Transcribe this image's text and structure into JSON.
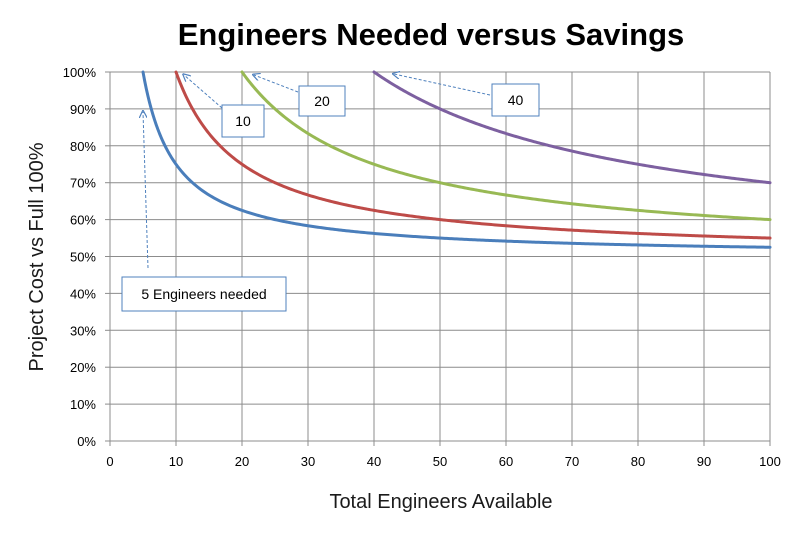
{
  "chart_data": {
    "type": "line",
    "title": "Engineers Needed versus Savings",
    "xlabel": "Total Engineers Available",
    "ylabel": "Project Cost vs Full 100%",
    "xlim": [
      0,
      100
    ],
    "ylim": [
      0,
      1
    ],
    "xticks": [
      "0",
      "10",
      "20",
      "30",
      "40",
      "50",
      "60",
      "70",
      "80",
      "90",
      "100"
    ],
    "yticks": [
      "0%",
      "10%",
      "20%",
      "30%",
      "40%",
      "50%",
      "60%",
      "70%",
      "80%",
      "90%",
      "100%"
    ],
    "grid": true,
    "series": [
      {
        "name": "5 Engineers needed",
        "engineers_needed": 5,
        "color": "#4a7ebb",
        "x": [
          5,
          10,
          20,
          30,
          40,
          50,
          60,
          70,
          80,
          90,
          100
        ],
        "y": [
          1.0,
          0.75,
          0.625,
          0.583,
          0.5625,
          0.55,
          0.542,
          0.536,
          0.531,
          0.528,
          0.525
        ]
      },
      {
        "name": "10",
        "engineers_needed": 10,
        "color": "#be4b48",
        "x": [
          10,
          20,
          30,
          40,
          50,
          60,
          70,
          80,
          90,
          100
        ],
        "y": [
          1.0,
          0.75,
          0.667,
          0.625,
          0.6,
          0.583,
          0.571,
          0.5625,
          0.556,
          0.55
        ]
      },
      {
        "name": "20",
        "engineers_needed": 20,
        "color": "#98b954",
        "x": [
          20,
          30,
          40,
          50,
          60,
          70,
          80,
          90,
          100
        ],
        "y": [
          1.0,
          0.833,
          0.75,
          0.7,
          0.667,
          0.643,
          0.625,
          0.611,
          0.6
        ]
      },
      {
        "name": "40",
        "engineers_needed": 40,
        "color": "#7d60a0",
        "x": [
          40,
          50,
          60,
          70,
          80,
          90,
          100
        ],
        "y": [
          1.0,
          0.9,
          0.833,
          0.786,
          0.75,
          0.722,
          0.7
        ]
      }
    ],
    "annotations": [
      {
        "text": "5 Engineers needed",
        "series": "5 Engineers needed"
      },
      {
        "text": "10",
        "series": "10"
      },
      {
        "text": "20",
        "series": "20"
      },
      {
        "text": "40",
        "series": "40"
      }
    ]
  },
  "colors": {
    "grid": "#8c8c8c",
    "callout_border": "#4f81bd",
    "arrow": "#4f81bd"
  }
}
